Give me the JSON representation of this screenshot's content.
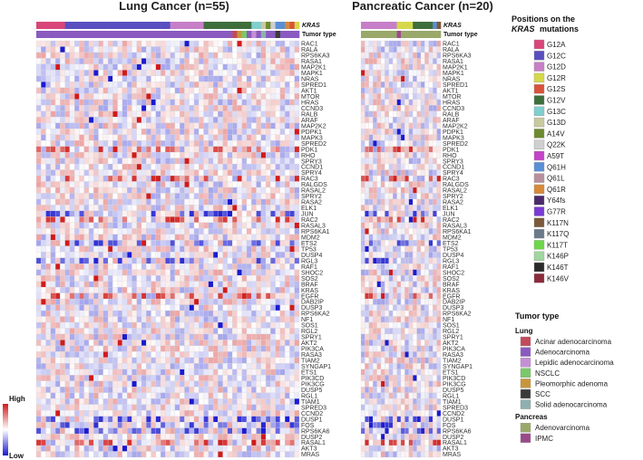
{
  "chart_data": {
    "type": "heatmap",
    "panels": [
      {
        "title": "Lung Cancer (n=55)",
        "n_samples": 55
      },
      {
        "title": "Pancreatic Cancer (n=20)",
        "n_samples": 20
      }
    ],
    "track_labels": {
      "kras": "KRAS",
      "tumor": "Tumor type"
    },
    "genes": [
      "RAC1",
      "RALA",
      "RPS6KA3",
      "RASA1",
      "MAP2K1",
      "MAPK1",
      "NRAS",
      "SPRED1",
      "AKT1",
      "MTOR",
      "HRAS",
      "CCND3",
      "RALB",
      "ARAF",
      "MAP2K2",
      "PDPK1",
      "MAPK3",
      "SPRED2",
      "PDK1",
      "RHO",
      "SPRY3",
      "CCND1",
      "SPRY4",
      "RAC3",
      "RALGDS",
      "RASAL2",
      "SPRY2",
      "RASA2",
      "ELK1",
      "JUN",
      "RAC2",
      "RASAL3",
      "RPS6KA1",
      "MDM2",
      "ETS2",
      "TP53",
      "DUSP4",
      "RGL3",
      "RAF1",
      "SHOC2",
      "SOS2",
      "BRAF",
      "KRAS",
      "EGFR",
      "DAB2IP",
      "DUSP3",
      "RPS6KA2",
      "NF1",
      "SOS1",
      "RGL2",
      "SPRY1",
      "AKT2",
      "PIK3CA",
      "RASA3",
      "TIAM2",
      "SYNGAP1",
      "ETS1",
      "PIK3CD",
      "PIK3CG",
      "DUSP5",
      "RGL1",
      "TIAM1",
      "SPRED3",
      "CCND2",
      "DUSP1",
      "FOS",
      "RPS6KA6",
      "DUSP2",
      "RASAL1",
      "AKT3",
      "MRAS"
    ],
    "color_scale": {
      "high_label": "High",
      "low_label": "Low",
      "high_color": "#d11a1a",
      "low_color": "#1a1ad1",
      "mid_color": "#ffffff"
    },
    "kras_mutations": {
      "title_prefix": "Positions on the",
      "title_gene": "KRAS",
      "title_suffix": "mutations",
      "items": [
        {
          "label": "G12A",
          "color": "#d9467a"
        },
        {
          "label": "G12C",
          "color": "#5a4fc0"
        },
        {
          "label": "G12D",
          "color": "#c77fc8"
        },
        {
          "label": "G12R",
          "color": "#d6d84a"
        },
        {
          "label": "G12S",
          "color": "#d9533a"
        },
        {
          "label": "G12V",
          "color": "#3f6e3d"
        },
        {
          "label": "G13C",
          "color": "#7fcfcf"
        },
        {
          "label": "G13D",
          "color": "#c9c9a0"
        },
        {
          "label": "A14V",
          "color": "#6d8a2e"
        },
        {
          "label": "Q22K",
          "color": "#cfcfcf"
        },
        {
          "label": "A59T",
          "color": "#c443c9"
        },
        {
          "label": "Q61H",
          "color": "#5a8fd6"
        },
        {
          "label": "Q61L",
          "color": "#b88f9e"
        },
        {
          "label": "Q61R",
          "color": "#d68a3a"
        },
        {
          "label": "Y64fs",
          "color": "#4a2a6a"
        },
        {
          "label": "G77R",
          "color": "#7a3ad6"
        },
        {
          "label": "K117N",
          "color": "#7a5a3a"
        },
        {
          "label": "K117Q",
          "color": "#6a7a8a"
        },
        {
          "label": "K117T",
          "color": "#6fd64a"
        },
        {
          "label": "K146P",
          "color": "#a0d6a0"
        },
        {
          "label": "K146T",
          "color": "#2a2a2a"
        },
        {
          "label": "K146V",
          "color": "#8a2a3a"
        }
      ]
    },
    "tumor_types": {
      "title": "Tumor type",
      "groups": [
        {
          "name": "Lung",
          "items": [
            {
              "label": "Acinar adenocarcinoma",
              "color": "#c24a5a"
            },
            {
              "label": "Adenocarcinoma",
              "color": "#8a5ac0"
            },
            {
              "label": "Lepidic adenocarcinoma",
              "color": "#c48fd6"
            },
            {
              "label": "NSCLC",
              "color": "#7ac86a"
            },
            {
              "label": "Pleomorphic adenoma",
              "color": "#c8963a"
            },
            {
              "label": "SCC",
              "color": "#3a3a3a"
            },
            {
              "label": "Solid adenocarcinoma",
              "color": "#8fb0b0"
            }
          ]
        },
        {
          "name": "Pancreas",
          "items": [
            {
              "label": "Adenovarcinoma",
              "color": "#9aa86a"
            },
            {
              "label": "IPMC",
              "color": "#9a4a8a"
            }
          ]
        }
      ]
    },
    "lung_kras_sequence": [
      "G12A",
      "G12A",
      "G12A",
      "G12A",
      "G12A",
      "G12A",
      "G12C",
      "G12C",
      "G12C",
      "G12C",
      "G12C",
      "G12C",
      "G12C",
      "G12C",
      "G12C",
      "G12C",
      "G12C",
      "G12C",
      "G12C",
      "G12C",
      "G12C",
      "G12C",
      "G12C",
      "G12C",
      "G12C",
      "G12C",
      "G12C",
      "G12C",
      "G12D",
      "G12D",
      "G12D",
      "G12D",
      "G12D",
      "G12D",
      "G12D",
      "G12V",
      "G12V",
      "G12V",
      "G12V",
      "G12V",
      "G12V",
      "G12V",
      "G12V",
      "G12V",
      "G12V",
      "G13C",
      "G13C",
      "G13D",
      "A14V",
      "Q22K",
      "Q61H",
      "Q61H",
      "Q61R",
      "G12S",
      "G12R"
    ],
    "lung_tumor_sequence": [
      "Adenocarcinoma",
      "Adenocarcinoma",
      "Adenocarcinoma",
      "Adenocarcinoma",
      "Adenocarcinoma",
      "Adenocarcinoma",
      "Adenocarcinoma",
      "Adenocarcinoma",
      "Adenocarcinoma",
      "Adenocarcinoma",
      "Adenocarcinoma",
      "Adenocarcinoma",
      "Adenocarcinoma",
      "Adenocarcinoma",
      "Adenocarcinoma",
      "Adenocarcinoma",
      "Adenocarcinoma",
      "Adenocarcinoma",
      "Adenocarcinoma",
      "Adenocarcinoma",
      "Adenocarcinoma",
      "Adenocarcinoma",
      "Adenocarcinoma",
      "Adenocarcinoma",
      "Adenocarcinoma",
      "Adenocarcinoma",
      "Adenocarcinoma",
      "Adenocarcinoma",
      "Adenocarcinoma",
      "Adenocarcinoma",
      "Adenocarcinoma",
      "Adenocarcinoma",
      "Adenocarcinoma",
      "Adenocarcinoma",
      "Adenocarcinoma",
      "Adenocarcinoma",
      "Adenocarcinoma",
      "Adenocarcinoma",
      "Adenocarcinoma",
      "Adenocarcinoma",
      "Adenocarcinoma",
      "Acinar adenocarcinoma",
      "Pleomorphic adenoma",
      "NSCLC",
      "Adenocarcinoma",
      "Lepidic adenocarcinoma",
      "Adenocarcinoma",
      "Solid adenocarcinoma",
      "Adenocarcinoma",
      "Adenocarcinoma",
      "SCC",
      "Adenocarcinoma",
      "Adenocarcinoma",
      "Adenocarcinoma",
      "Adenocarcinoma"
    ],
    "panc_kras_sequence": [
      "G12D",
      "G12D",
      "G12D",
      "G12D",
      "G12D",
      "G12D",
      "G12D",
      "G12D",
      "G12D",
      "G12R",
      "G12R",
      "G12R",
      "G12R",
      "G12V",
      "G12V",
      "G12V",
      "G12V",
      "G12V",
      "Q61H",
      "K117N"
    ],
    "panc_tumor_sequence": [
      "Adenovarcinoma",
      "Adenovarcinoma",
      "Adenovarcinoma",
      "Adenovarcinoma",
      "Adenovarcinoma",
      "Adenovarcinoma",
      "Adenovarcinoma",
      "Adenovarcinoma",
      "Adenovarcinoma",
      "IPMC",
      "Adenovarcinoma",
      "Adenovarcinoma",
      "Adenovarcinoma",
      "Adenovarcinoma",
      "Adenovarcinoma",
      "Adenovarcinoma",
      "Adenovarcinoma",
      "Adenovarcinoma",
      "Adenovarcinoma",
      "Adenovarcinoma"
    ]
  }
}
